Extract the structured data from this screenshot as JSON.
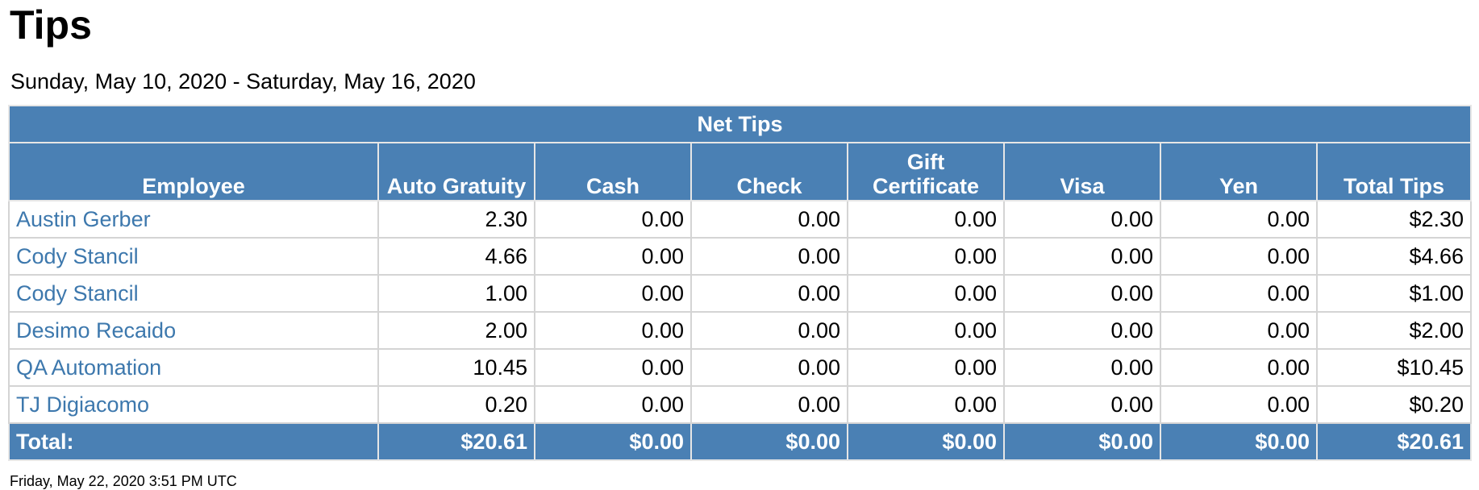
{
  "page": {
    "title": "Tips",
    "date_range": "Sunday, May 10, 2020 - Saturday, May 16, 2020",
    "footer": "Friday, May 22, 2020 3:51 PM UTC"
  },
  "table": {
    "group_header": "Net Tips",
    "columns": [
      "Employee",
      "Auto Gratuity",
      "Cash",
      "Check",
      "Gift Certificate",
      "Visa",
      "Yen",
      "Total Tips"
    ],
    "rows": [
      [
        "Austin Gerber",
        "2.30",
        "0.00",
        "0.00",
        "0.00",
        "0.00",
        "0.00",
        "$2.30"
      ],
      [
        "Cody Stancil",
        "4.66",
        "0.00",
        "0.00",
        "0.00",
        "0.00",
        "0.00",
        "$4.66"
      ],
      [
        "Cody Stancil",
        "1.00",
        "0.00",
        "0.00",
        "0.00",
        "0.00",
        "0.00",
        "$1.00"
      ],
      [
        "Desimo Recaido",
        "2.00",
        "0.00",
        "0.00",
        "0.00",
        "0.00",
        "0.00",
        "$2.00"
      ],
      [
        "QA Automation",
        "10.45",
        "0.00",
        "0.00",
        "0.00",
        "0.00",
        "0.00",
        "$10.45"
      ],
      [
        "TJ Digiacomo",
        "0.20",
        "0.00",
        "0.00",
        "0.00",
        "0.00",
        "0.00",
        "$0.20"
      ]
    ],
    "totals": [
      "Total:",
      "$20.61",
      "$0.00",
      "$0.00",
      "$0.00",
      "$0.00",
      "$0.00",
      "$20.61"
    ]
  },
  "colors": {
    "header_bg": "#4a80b4",
    "link": "#3d78ad",
    "grid": "#d4d4d4"
  }
}
